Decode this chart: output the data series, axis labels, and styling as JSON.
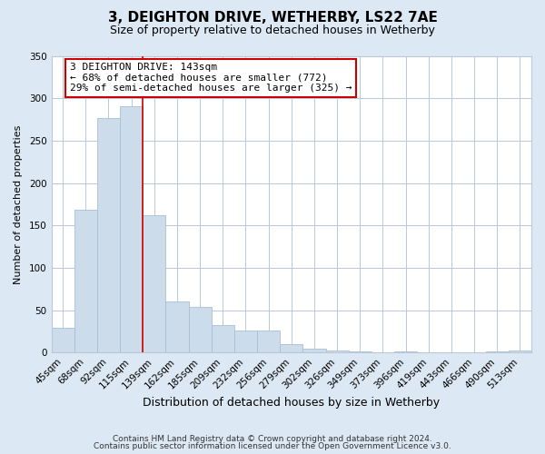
{
  "title": "3, DEIGHTON DRIVE, WETHERBY, LS22 7AE",
  "subtitle": "Size of property relative to detached houses in Wetherby",
  "xlabel": "Distribution of detached houses by size in Wetherby",
  "ylabel": "Number of detached properties",
  "footer_lines": [
    "Contains HM Land Registry data © Crown copyright and database right 2024.",
    "Contains public sector information licensed under the Open Government Licence v3.0."
  ],
  "bar_labels": [
    "45sqm",
    "68sqm",
    "92sqm",
    "115sqm",
    "139sqm",
    "162sqm",
    "185sqm",
    "209sqm",
    "232sqm",
    "256sqm",
    "279sqm",
    "302sqm",
    "326sqm",
    "349sqm",
    "373sqm",
    "396sqm",
    "419sqm",
    "443sqm",
    "466sqm",
    "490sqm",
    "513sqm"
  ],
  "bar_values": [
    29,
    168,
    277,
    291,
    162,
    60,
    54,
    33,
    26,
    26,
    10,
    5,
    2,
    1,
    0,
    1,
    0,
    0,
    0,
    1,
    3
  ],
  "bar_color": "#cddceb",
  "bar_edge_color": "#a8bfd4",
  "vline_color": "#cc0000",
  "vline_bar_index": 4,
  "annotation_text": "3 DEIGHTON DRIVE: 143sqm\n← 68% of detached houses are smaller (772)\n29% of semi-detached houses are larger (325) →",
  "annotation_box_facecolor": "#ffffff",
  "annotation_box_edgecolor": "#cc0000",
  "ylim": [
    0,
    350
  ],
  "yticks": [
    0,
    50,
    100,
    150,
    200,
    250,
    300,
    350
  ],
  "background_color": "#dce8f3",
  "plot_background_color": "#ffffff",
  "grid_color": "#b8c8d8",
  "title_fontsize": 11,
  "subtitle_fontsize": 9,
  "xlabel_fontsize": 9,
  "ylabel_fontsize": 8,
  "tick_fontsize": 7.5,
  "annotation_fontsize": 8,
  "footer_fontsize": 6.5
}
